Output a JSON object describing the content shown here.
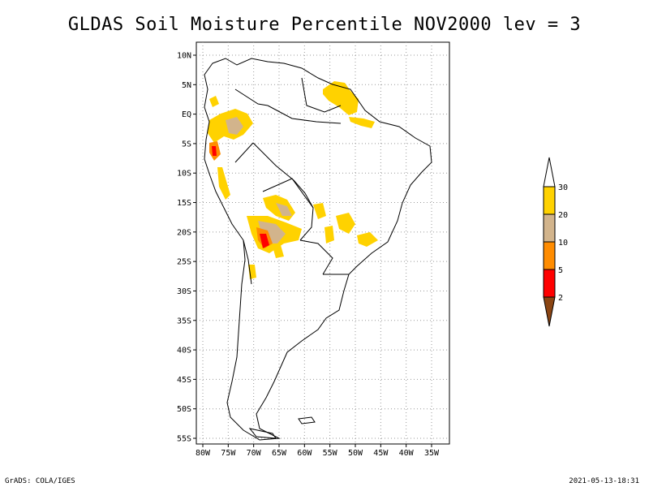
{
  "title": "GLDAS Soil Moisture Percentile NOV2000 lev = 3",
  "map": {
    "lat_labels": [
      "10N",
      "5N",
      "EQ",
      "5S",
      "10S",
      "15S",
      "20S",
      "25S",
      "30S",
      "35S",
      "40S",
      "45S",
      "50S",
      "55S"
    ],
    "lon_labels": [
      "80W",
      "75W",
      "70W",
      "65W",
      "60W",
      "55W",
      "50W",
      "45W",
      "40W",
      "35W"
    ],
    "grid": true
  },
  "legend": {
    "bins": [
      {
        "label": "30",
        "color": "#ffd200"
      },
      {
        "label": "20",
        "color": "#d2b48c"
      },
      {
        "label": "10",
        "color": "#ff8c00"
      },
      {
        "label": "5",
        "color": "#ff0000"
      },
      {
        "label": "2",
        "color": "#8b4513"
      }
    ],
    "top_arrow_color": "#ffffff",
    "bottom_arrow_color": "#8b4513"
  },
  "footer": {
    "left": "GrADS: COLA/IGES",
    "right": "2021-05-13-18:31"
  }
}
